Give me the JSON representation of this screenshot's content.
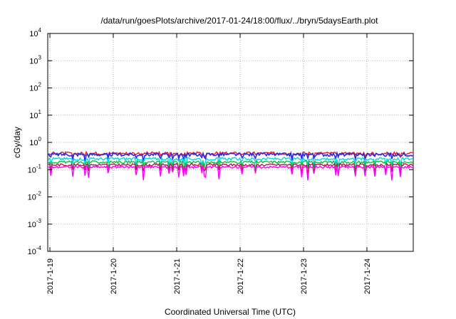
{
  "chart_data": {
    "type": "line",
    "title": "/data/run/goesPlots/archive/2017-01-24/18:00/flux/../bryn/5daysEarth.plot",
    "xlabel": "Coordinated Universal Time (UTC)",
    "ylabel": "cGy/day",
    "y_scale": "log",
    "ylim_exponents": [
      -4,
      4
    ],
    "y_ticks": [
      {
        "base": "10",
        "exp": "-4"
      },
      {
        "base": "10",
        "exp": "-3"
      },
      {
        "base": "10",
        "exp": "-2"
      },
      {
        "base": "10",
        "exp": "-1"
      },
      {
        "base": "10",
        "exp": "0"
      },
      {
        "base": "10",
        "exp": "1"
      },
      {
        "base": "10",
        "exp": "2"
      },
      {
        "base": "10",
        "exp": "3"
      },
      {
        "base": "10",
        "exp": "4"
      }
    ],
    "x_ticks": [
      "2017-1-19",
      "2017-1-20",
      "2017-1-21",
      "2017-1-22",
      "2017-1-23",
      "2017-1-24"
    ],
    "grid": true,
    "series": [
      {
        "color": "#e8182c",
        "base": 0.4,
        "jitter": 0.05,
        "dip": 0.2
      },
      {
        "color": "#2a2ae6",
        "base": 0.36,
        "jitter": 0.05,
        "dip": 0.3
      },
      {
        "color": "#00d8d8",
        "base": 0.25,
        "jitter": 0.03,
        "dip": 0.35
      },
      {
        "color": "#16b84c",
        "base": 0.19,
        "jitter": 0.02,
        "dip": 0.4
      },
      {
        "color": "#b01848",
        "base": 0.15,
        "jitter": 0.015,
        "dip": 0.45
      },
      {
        "color": "#ff00ff",
        "base": 0.125,
        "jitter": 0.012,
        "dip": 0.55
      }
    ]
  }
}
